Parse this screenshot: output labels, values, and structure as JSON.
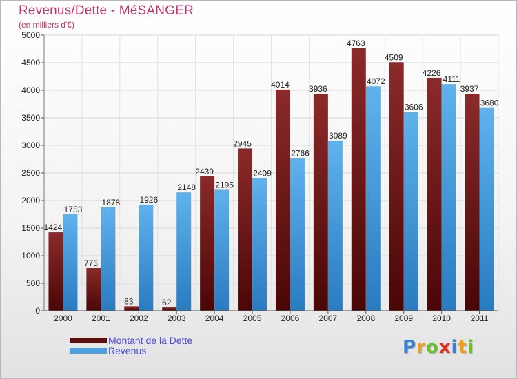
{
  "title": "Revenus/Dette - MéSANGER",
  "subtitle": "(en milliers d'€)",
  "colors": {
    "title": "#c0306a",
    "dette_top": "#8b2a2a",
    "dette_bottom": "#4a0606",
    "revenus_top": "#5fb2ec",
    "revenus_bottom": "#2a7bc0",
    "legend_text": "#4a4ae0"
  },
  "legend": [
    {
      "label": "Montant de la Dette",
      "color": "#6b1414"
    },
    {
      "label": "Revenus",
      "color": "#4aa0e0"
    }
  ],
  "logo": {
    "letters": [
      "P",
      "r",
      "o",
      "x",
      "i",
      "t",
      "i"
    ],
    "colors": [
      "#3a7fd0",
      "#e8a020",
      "#6cbf2a",
      "#e03020",
      "#3a7fd0",
      "#e8a020",
      "#6cbf2a"
    ]
  },
  "chart_data": {
    "type": "bar",
    "title": "Revenus/Dette - MéSANGER",
    "subtitle": "(en milliers d'€)",
    "categories": [
      "2000",
      "2001",
      "2002",
      "2003",
      "2004",
      "2005",
      "2006",
      "2007",
      "2008",
      "2009",
      "2010",
      "2011"
    ],
    "series": [
      {
        "name": "Montant de la Dette",
        "values": [
          1424,
          775,
          83,
          62,
          2439,
          2945,
          4014,
          3936,
          4763,
          4509,
          4226,
          3937
        ]
      },
      {
        "name": "Revenus",
        "values": [
          1753,
          1878,
          1926,
          2148,
          2195,
          2409,
          2766,
          3089,
          4072,
          3606,
          4111,
          3680
        ]
      }
    ],
    "ylim": [
      0,
      5000
    ],
    "yticks": [
      0,
      500,
      1000,
      1500,
      2000,
      2500,
      3000,
      3500,
      4000,
      4500,
      5000
    ],
    "grid": true,
    "legend_position": "bottom-left"
  }
}
